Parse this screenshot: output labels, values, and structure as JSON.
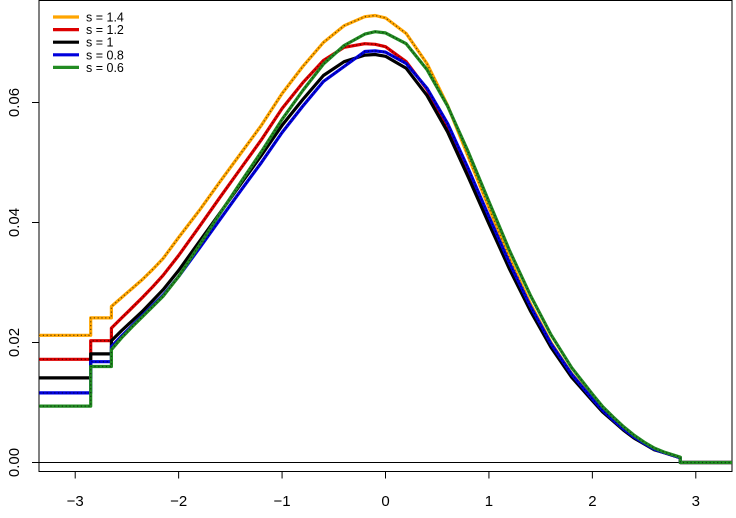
{
  "chart_data": {
    "type": "line",
    "title": "",
    "xlabel": "",
    "ylabel": "",
    "xlim": [
      -3.35,
      3.35
    ],
    "ylim": [
      -0.0015,
      0.077
    ],
    "grid": false,
    "legend_position": "top-left",
    "x_ticks": [
      {
        "value": -3,
        "label": "−3"
      },
      {
        "value": -2,
        "label": "−2"
      },
      {
        "value": -1,
        "label": "−1"
      },
      {
        "value": 0,
        "label": "0"
      },
      {
        "value": 1,
        "label": "1"
      },
      {
        "value": 2,
        "label": "2"
      },
      {
        "value": 3,
        "label": "3"
      }
    ],
    "y_ticks": [
      {
        "value": 0,
        "label": "0.00"
      },
      {
        "value": 0.02,
        "label": "0.02"
      },
      {
        "value": 0.04,
        "label": "0.04"
      },
      {
        "value": 0.06,
        "label": "0.06"
      }
    ],
    "reference_line_y": 0,
    "series": [
      {
        "name": "s = 1.4",
        "color": "#FFA500",
        "dotted": true,
        "x": [
          -3.35,
          -2.85,
          -2.85,
          -2.65,
          -2.65,
          -2.55,
          -2.45,
          -2.35,
          -2.25,
          -2.15,
          -2.0,
          -1.8,
          -1.6,
          -1.4,
          -1.2,
          -1.0,
          -0.8,
          -0.6,
          -0.4,
          -0.2,
          -0.1,
          0.0,
          0.2,
          0.4,
          0.6,
          0.8,
          1.0,
          1.2,
          1.4,
          1.6,
          1.8,
          2.0,
          2.1,
          2.2,
          2.3,
          2.4,
          2.5,
          2.6,
          2.7,
          2.85,
          2.85,
          3.35
        ],
        "y": [
          0.0212,
          0.0212,
          0.0241,
          0.0241,
          0.026,
          0.0275,
          0.029,
          0.0305,
          0.0322,
          0.034,
          0.0375,
          0.042,
          0.0468,
          0.0515,
          0.0562,
          0.0615,
          0.066,
          0.07,
          0.0728,
          0.0743,
          0.0745,
          0.0741,
          0.0715,
          0.0665,
          0.0595,
          0.051,
          0.0425,
          0.034,
          0.0265,
          0.02,
          0.0148,
          0.0108,
          0.0088,
          0.0072,
          0.0056,
          0.0043,
          0.0032,
          0.0022,
          0.0016,
          0.0008,
          0.0,
          0.0
        ]
      },
      {
        "name": "s = 1.2",
        "color": "#DD0000",
        "dotted": true,
        "x": [
          -3.35,
          -2.85,
          -2.85,
          -2.65,
          -2.65,
          -2.55,
          -2.45,
          -2.35,
          -2.25,
          -2.15,
          -2.0,
          -1.8,
          -1.6,
          -1.4,
          -1.2,
          -1.0,
          -0.8,
          -0.6,
          -0.4,
          -0.2,
          -0.1,
          0.0,
          0.2,
          0.4,
          0.6,
          0.8,
          1.0,
          1.2,
          1.4,
          1.6,
          1.8,
          2.0,
          2.1,
          2.2,
          2.3,
          2.4,
          2.5,
          2.6,
          2.7,
          2.85,
          2.85,
          3.35
        ],
        "y": [
          0.0172,
          0.0172,
          0.0203,
          0.0203,
          0.0224,
          0.0241,
          0.0258,
          0.0275,
          0.0293,
          0.0312,
          0.0345,
          0.0393,
          0.0442,
          0.049,
          0.0538,
          0.059,
          0.0633,
          0.067,
          0.0692,
          0.0698,
          0.0697,
          0.0693,
          0.0668,
          0.0622,
          0.0558,
          0.048,
          0.0402,
          0.0325,
          0.0256,
          0.0194,
          0.0144,
          0.0104,
          0.0085,
          0.007,
          0.0055,
          0.0042,
          0.0032,
          0.0022,
          0.0016,
          0.0008,
          0.0,
          0.0
        ]
      },
      {
        "name": "s = 1",
        "color": "#000000",
        "dotted": false,
        "x": [
          -3.35,
          -2.85,
          -2.85,
          -2.65,
          -2.65,
          -2.55,
          -2.45,
          -2.35,
          -2.25,
          -2.15,
          -2.0,
          -1.8,
          -1.6,
          -1.4,
          -1.2,
          -1.0,
          -0.8,
          -0.6,
          -0.4,
          -0.2,
          -0.1,
          0.0,
          0.2,
          0.4,
          0.6,
          0.8,
          1.0,
          1.2,
          1.4,
          1.6,
          1.8,
          2.0,
          2.1,
          2.2,
          2.3,
          2.4,
          2.5,
          2.6,
          2.7,
          2.85,
          2.85,
          3.35
        ],
        "y": [
          0.0141,
          0.0141,
          0.0181,
          0.0181,
          0.0203,
          0.022,
          0.0236,
          0.0252,
          0.027,
          0.0288,
          0.032,
          0.0368,
          0.0416,
          0.0464,
          0.0512,
          0.0562,
          0.0605,
          0.0645,
          0.0668,
          0.0679,
          0.068,
          0.0677,
          0.0657,
          0.0612,
          0.0551,
          0.0476,
          0.0398,
          0.0322,
          0.0253,
          0.0192,
          0.0142,
          0.0103,
          0.0084,
          0.0069,
          0.0054,
          0.0041,
          0.0031,
          0.0021,
          0.0016,
          0.0008,
          0.0,
          0.0
        ]
      },
      {
        "name": "s = 0.8",
        "color": "#0000DD",
        "dotted": true,
        "x": [
          -3.35,
          -2.85,
          -2.85,
          -2.65,
          -2.65,
          -2.55,
          -2.45,
          -2.35,
          -2.25,
          -2.15,
          -2.0,
          -1.8,
          -1.6,
          -1.4,
          -1.2,
          -1.0,
          -0.8,
          -0.6,
          -0.4,
          -0.2,
          -0.1,
          0.0,
          0.2,
          0.4,
          0.6,
          0.8,
          1.0,
          1.2,
          1.4,
          1.6,
          1.8,
          2.0,
          2.1,
          2.2,
          2.3,
          2.4,
          2.5,
          2.6,
          2.7,
          2.85,
          2.85,
          3.35
        ],
        "y": [
          0.0116,
          0.0116,
          0.0168,
          0.0168,
          0.0193,
          0.0211,
          0.0228,
          0.0245,
          0.0262,
          0.0279,
          0.031,
          0.0357,
          0.0405,
          0.0453,
          0.05,
          0.055,
          0.0594,
          0.0635,
          0.066,
          0.0685,
          0.0686,
          0.0684,
          0.0665,
          0.0624,
          0.0565,
          0.049,
          0.041,
          0.0332,
          0.0261,
          0.0198,
          0.0147,
          0.0106,
          0.0087,
          0.0071,
          0.0056,
          0.0043,
          0.0032,
          0.0022,
          0.0016,
          0.0008,
          0.0,
          0.0
        ]
      },
      {
        "name": "s = 0.6",
        "color": "#228B22",
        "dotted": true,
        "x": [
          -3.35,
          -2.85,
          -2.85,
          -2.65,
          -2.65,
          -2.55,
          -2.45,
          -2.35,
          -2.25,
          -2.15,
          -2.0,
          -1.8,
          -1.6,
          -1.4,
          -1.2,
          -1.0,
          -0.8,
          -0.6,
          -0.4,
          -0.2,
          -0.1,
          0.0,
          0.2,
          0.4,
          0.6,
          0.8,
          1.0,
          1.2,
          1.4,
          1.6,
          1.8,
          2.0,
          2.1,
          2.2,
          2.3,
          2.4,
          2.5,
          2.6,
          2.7,
          2.85,
          2.85,
          3.35
        ],
        "y": [
          0.0094,
          0.0094,
          0.016,
          0.016,
          0.0188,
          0.0208,
          0.0226,
          0.0243,
          0.026,
          0.0277,
          0.031,
          0.0362,
          0.0415,
          0.0467,
          0.0518,
          0.0572,
          0.062,
          0.0664,
          0.0695,
          0.0714,
          0.0718,
          0.0716,
          0.0698,
          0.0655,
          0.0594,
          0.0518,
          0.0435,
          0.0353,
          0.0279,
          0.0213,
          0.0158,
          0.0114,
          0.0093,
          0.0076,
          0.006,
          0.0046,
          0.0034,
          0.0024,
          0.0017,
          0.0009,
          0.0,
          0.0
        ]
      }
    ]
  }
}
